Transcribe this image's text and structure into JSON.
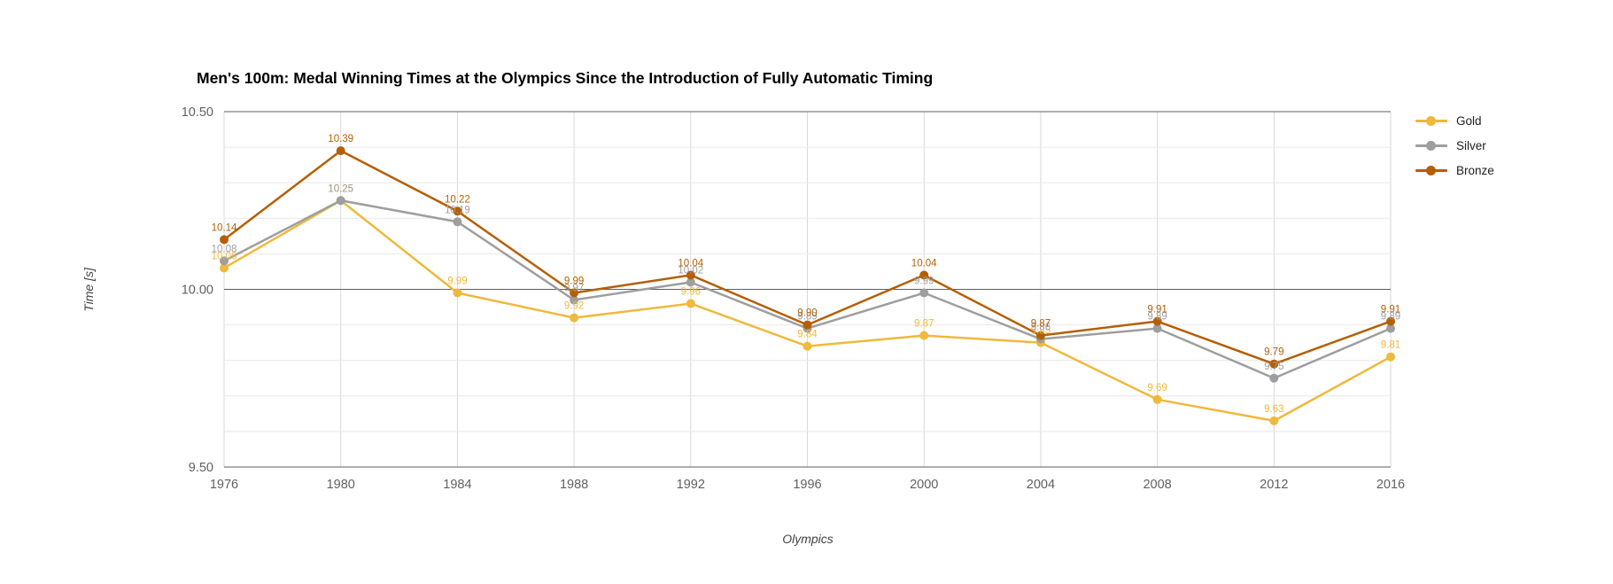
{
  "title": "Men's 100m: Medal Winning Times at the Olympics Since the Introduction of Fully Automatic Timing",
  "chart_data": {
    "type": "line",
    "title": "Men's 100m: Medal Winning Times at the Olympics Since the Introduction of Fully Automatic Timing",
    "xlabel": "Olympics",
    "ylabel": "Time [s]",
    "categories": [
      "1976",
      "1980",
      "1984",
      "1988",
      "1992",
      "1996",
      "2000",
      "2004",
      "2008",
      "2012",
      "2016"
    ],
    "series": [
      {
        "name": "Gold",
        "color": "#EFB93C",
        "values": [
          10.06,
          10.25,
          9.99,
          9.92,
          9.96,
          9.84,
          9.87,
          9.85,
          9.69,
          9.63,
          9.81
        ]
      },
      {
        "name": "Silver",
        "color": "#9E9E9E",
        "values": [
          10.08,
          10.25,
          10.19,
          9.97,
          10.02,
          9.89,
          9.99,
          9.86,
          9.89,
          9.75,
          9.89
        ]
      },
      {
        "name": "Bronze",
        "color": "#B45F06",
        "values": [
          10.14,
          10.39,
          10.22,
          9.99,
          10.04,
          9.9,
          10.04,
          9.87,
          9.91,
          9.79,
          9.91
        ]
      }
    ],
    "ylim": [
      9.5,
      10.5
    ],
    "y_ticks": [
      {
        "value": 10.5,
        "label": "10.50"
      },
      {
        "value": 10.0,
        "label": "10.00"
      },
      {
        "value": 9.5,
        "label": "9.50"
      }
    ],
    "minor_step": 0.1,
    "grid": true,
    "point_labels": true,
    "legend_position": "right",
    "colors": {
      "major_grid": "#5F5F5F",
      "minor_grid": "#E8E8E8",
      "vertical_grid": "#D9D9D9",
      "tick_text": "#616161"
    }
  }
}
